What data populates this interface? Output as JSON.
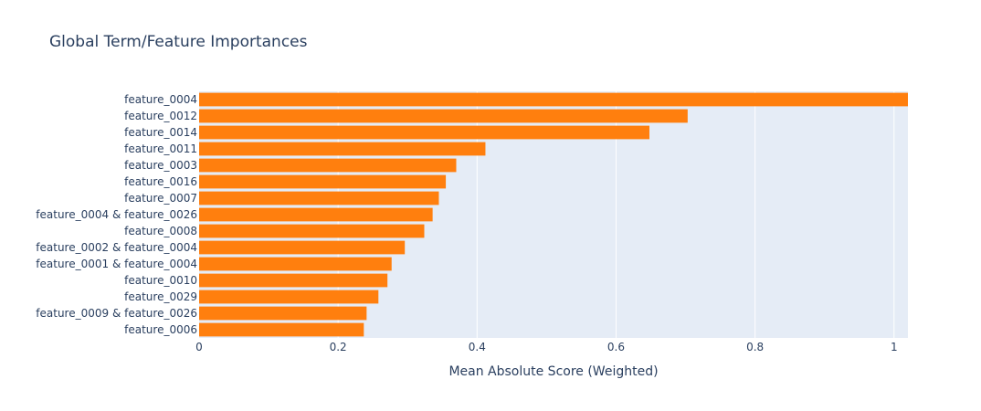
{
  "chart_data": {
    "type": "bar",
    "orientation": "horizontal",
    "title": "Global Term/Feature Importances",
    "xlabel": "Mean Absolute Score (Weighted)",
    "ylabel": "",
    "xlim": [
      0,
      1.02
    ],
    "xticks": [
      0,
      0.2,
      0.4,
      0.6,
      0.8,
      1
    ],
    "xtick_labels": [
      "0",
      "0.2",
      "0.4",
      "0.6",
      "0.8",
      "1"
    ],
    "grid": true,
    "legend": "none",
    "categories": [
      "feature_0004",
      "feature_0012",
      "feature_0014",
      "feature_0011",
      "feature_0003",
      "feature_0016",
      "feature_0007",
      "feature_0004 & feature_0026",
      "feature_0008",
      "feature_0002 & feature_0004",
      "feature_0001 & feature_0004",
      "feature_0010",
      "feature_0029",
      "feature_0009 & feature_0026",
      "feature_0006"
    ],
    "values": [
      1.02,
      0.703,
      0.648,
      0.412,
      0.37,
      0.355,
      0.345,
      0.336,
      0.324,
      0.296,
      0.277,
      0.271,
      0.258,
      0.241,
      0.237
    ],
    "colors": {
      "bar": "#ff7f0e",
      "plot_background": "#e5ecf6",
      "grid": "#ffffff",
      "text": "#2a3f5f"
    }
  }
}
